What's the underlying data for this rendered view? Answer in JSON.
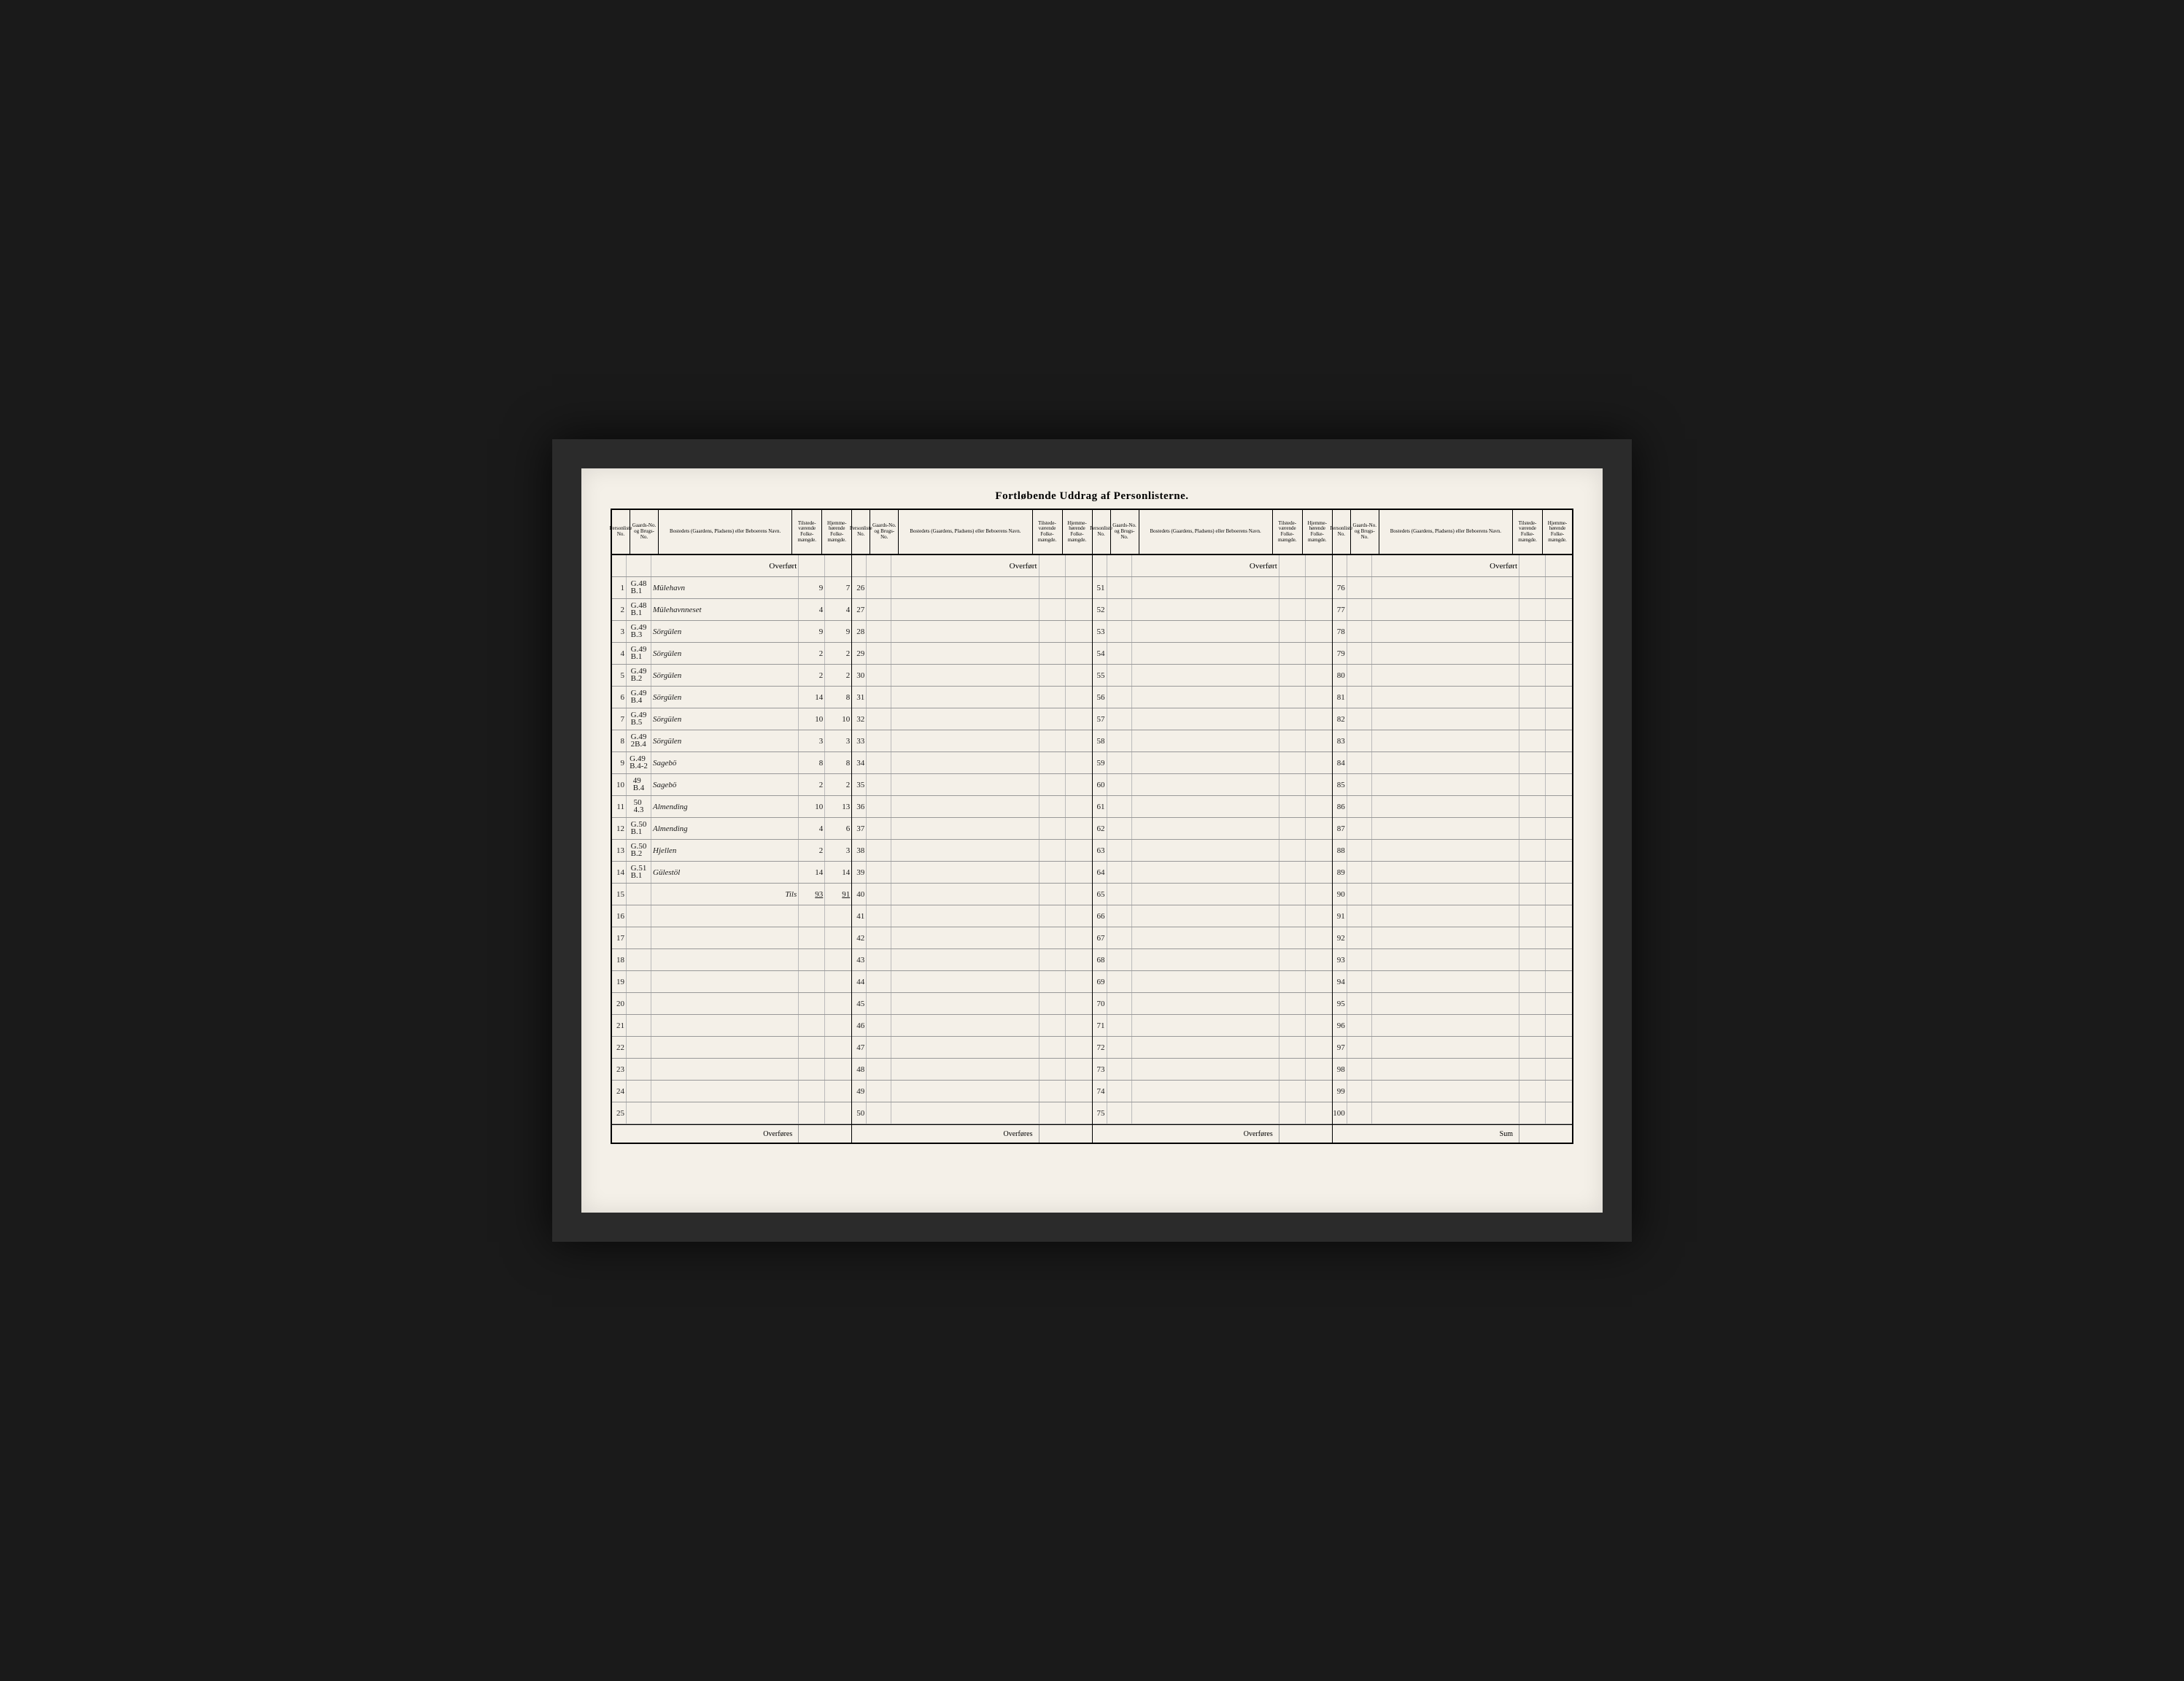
{
  "title": "Fortløbende Uddrag af Personlisterne.",
  "headers": {
    "person": "Personliste No.",
    "gaard": "Gaards-No. og Brugs-No.",
    "bosted": "Bostedets (Gaardens, Pladsens) eller Beboerens Navn.",
    "tilstede": "Tilstede-værende Folke-mængde.",
    "hjemme": "Hjemme-hørende Folke-mængde."
  },
  "overfort_label": "Overført",
  "overfores_label": "Overføres",
  "sum_label": "Sum",
  "tils_label": "Tils",
  "sections": [
    {
      "start": 1,
      "rows": [
        {
          "n": 1,
          "g": "G.48 B.1",
          "name": "Mülehavn",
          "t": "9",
          "h": "7"
        },
        {
          "n": 2,
          "g": "G.48 B.1",
          "name": "Mülehavnneset",
          "t": "4",
          "h": "4"
        },
        {
          "n": 3,
          "g": "G.49 B.3",
          "name": "Sörgülen",
          "t": "9",
          "h": "9"
        },
        {
          "n": 4,
          "g": "G.49 B.1",
          "name": "Sörgülen",
          "t": "2",
          "h": "2"
        },
        {
          "n": 5,
          "g": "G.49 B.2",
          "name": "Sörgülen",
          "t": "2",
          "h": "2"
        },
        {
          "n": 6,
          "g": "G.49 B.4",
          "name": "Sörgülen",
          "t": "14",
          "h": "8"
        },
        {
          "n": 7,
          "g": "G.49 B.5",
          "name": "Sörgülen",
          "t": "10",
          "h": "10"
        },
        {
          "n": 8,
          "g": "G.49 2B.4",
          "name": "Sörgülen",
          "t": "3",
          "h": "3"
        },
        {
          "n": 9,
          "g": "G.49 B.4-2",
          "name": "Sagebö",
          "t": "8",
          "h": "8"
        },
        {
          "n": 10,
          "g": "49 B.4",
          "name": "Sagebö",
          "t": "2",
          "h": "2"
        },
        {
          "n": 11,
          "g": "50 4.3",
          "name": "Almending",
          "t": "10",
          "h": "13"
        },
        {
          "n": 12,
          "g": "G.50 B.1",
          "name": "Almending",
          "t": "4",
          "h": "6"
        },
        {
          "n": 13,
          "g": "G.50 B.2",
          "name": "Hjellen",
          "t": "2",
          "h": "3"
        },
        {
          "n": 14,
          "g": "G.51 B.1",
          "name": "Gülestöl",
          "t": "14",
          "h": "14"
        }
      ],
      "totals": {
        "t": "93",
        "h": "91"
      }
    },
    {
      "start": 26,
      "rows": []
    },
    {
      "start": 51,
      "rows": []
    },
    {
      "start": 76,
      "rows": []
    }
  ]
}
